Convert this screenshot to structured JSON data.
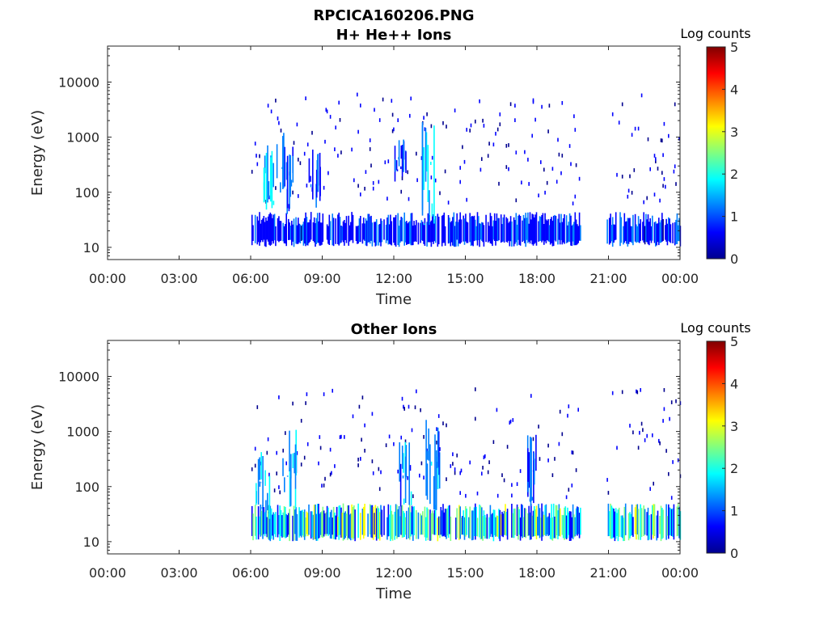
{
  "figure_title": "RPCICA160206.PNG",
  "colors": {
    "colormap": [
      "#00008f",
      "#0000ff",
      "#0080ff",
      "#00ffff",
      "#80ff80",
      "#ffff00",
      "#ff8000",
      "#ff0000",
      "#800000"
    ],
    "axis": "#262626"
  },
  "chart_data": [
    {
      "type": "heatmap",
      "title": "H+ He++ Ions",
      "xlabel": "Time",
      "ylabel": "Energy (eV)",
      "xlim": [
        "00:00",
        "24:00"
      ],
      "ylim": [
        6,
        45000
      ],
      "yscale": "log",
      "x_tick_labels": [
        "00:00",
        "03:00",
        "06:00",
        "09:00",
        "12:00",
        "15:00",
        "18:00",
        "21:00",
        "00:00"
      ],
      "y_tick_values": [
        10,
        100,
        1000,
        10000
      ],
      "y_tick_labels": [
        "10",
        "100",
        "1000",
        "10000"
      ],
      "colorbar": {
        "label": "Log counts",
        "range": [
          0,
          5
        ],
        "ticks": [
          "0",
          "1",
          "2",
          "3",
          "4",
          "5"
        ]
      },
      "data_coverage": [
        [
          "06:00",
          "19:50"
        ],
        [
          "20:55",
          "24:00"
        ]
      ],
      "dense_band_eV": [
        12,
        40
      ],
      "bursts": [
        {
          "time_h": 6.8,
          "emin_eV": 40,
          "emax_eV": 800,
          "level": 1.6
        },
        {
          "time_h": 7.5,
          "emin_eV": 30,
          "emax_eV": 1200,
          "level": 1.4
        },
        {
          "time_h": 8.6,
          "emin_eV": 40,
          "emax_eV": 900,
          "level": 1.2
        },
        {
          "time_h": 12.3,
          "emin_eV": 150,
          "emax_eV": 1000,
          "level": 1.3
        },
        {
          "time_h": 13.4,
          "emin_eV": 25,
          "emax_eV": 2300,
          "level": 2.0
        }
      ],
      "peak_level": 2.2
    },
    {
      "type": "heatmap",
      "title": "Other Ions",
      "xlabel": "Time",
      "ylabel": "Energy (eV)",
      "xlim": [
        "00:00",
        "24:00"
      ],
      "ylim": [
        6,
        45000
      ],
      "yscale": "log",
      "x_tick_labels": [
        "00:00",
        "03:00",
        "06:00",
        "09:00",
        "12:00",
        "15:00",
        "18:00",
        "21:00",
        "00:00"
      ],
      "y_tick_values": [
        10,
        100,
        1000,
        10000
      ],
      "y_tick_labels": [
        "10",
        "100",
        "1000",
        "10000"
      ],
      "colorbar": {
        "label": "Log counts",
        "range": [
          0,
          5
        ],
        "ticks": [
          "0",
          "1",
          "2",
          "3",
          "4",
          "5"
        ]
      },
      "data_coverage": [
        [
          "06:00",
          "19:50"
        ],
        [
          "20:55",
          "24:00"
        ]
      ],
      "dense_band_eV": [
        12,
        45
      ],
      "bursts": [
        {
          "time_h": 6.5,
          "emin_eV": 20,
          "emax_eV": 500,
          "level": 1.8
        },
        {
          "time_h": 7.6,
          "emin_eV": 30,
          "emax_eV": 1500,
          "level": 1.7
        },
        {
          "time_h": 12.5,
          "emin_eV": 40,
          "emax_eV": 800,
          "level": 1.5
        },
        {
          "time_h": 13.6,
          "emin_eV": 30,
          "emax_eV": 1800,
          "level": 1.6
        },
        {
          "time_h": 17.8,
          "emin_eV": 40,
          "emax_eV": 1200,
          "level": 1.3
        }
      ],
      "peak_level": 3.0
    }
  ]
}
